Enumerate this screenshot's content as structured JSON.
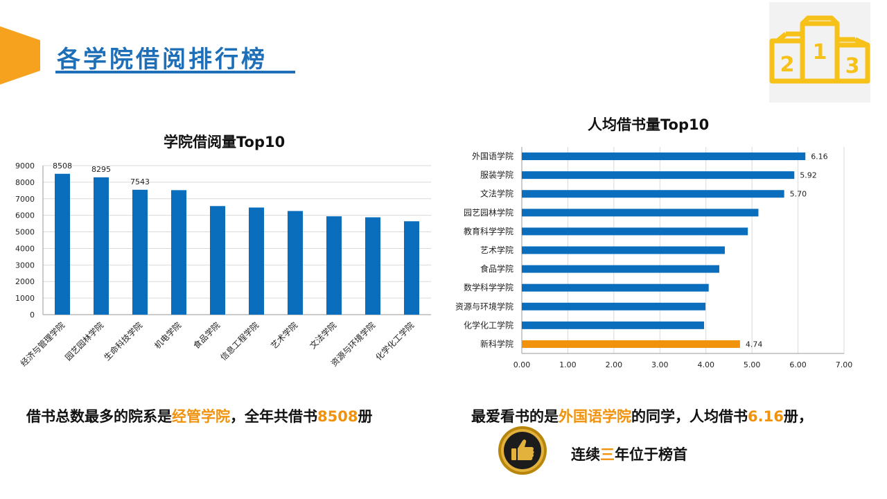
{
  "header": {
    "title": "各学院借阅排行榜",
    "podium_labels": [
      "2",
      "1",
      "3"
    ]
  },
  "colors": {
    "bar_blue": "#0a6ebd",
    "highlight_orange": "#f0920c",
    "title_blue": "#1e6fb8",
    "podium_yellow": "#f6c21a"
  },
  "chart_data": [
    {
      "type": "bar",
      "title": "学院借阅量Top10",
      "categories": [
        "经济与管理学院",
        "园艺园林学院",
        "生命科技学院",
        "机电学院",
        "食品学院",
        "信息工程学院",
        "艺术学院",
        "文法学院",
        "资源与环境学院",
        "化学化工学院"
      ],
      "values": [
        8508,
        8295,
        7543,
        7520,
        6560,
        6470,
        6260,
        5940,
        5880,
        5640
      ],
      "data_labels": [
        "8508",
        "8295",
        "7543",
        null,
        null,
        null,
        null,
        null,
        null,
        null
      ],
      "ylim": [
        0,
        9000
      ],
      "yticks": [
        "0",
        "1000",
        "2000",
        "3000",
        "4000",
        "5000",
        "6000",
        "7000",
        "8000",
        "9000"
      ],
      "grid": true
    },
    {
      "type": "bar",
      "orientation": "horizontal",
      "title": "人均借书量Top10",
      "categories": [
        "外国语学院",
        "服装学院",
        "文法学院",
        "园艺园林学院",
        "教育科学学院",
        "艺术学院",
        "食品学院",
        "数学科学学院",
        "资源与环境学院",
        "化学化工学院",
        "新科学院"
      ],
      "values": [
        6.16,
        5.92,
        5.7,
        5.14,
        4.91,
        4.41,
        4.29,
        4.06,
        3.99,
        3.96,
        4.74
      ],
      "data_labels": [
        "6.16",
        "5.92",
        "5.70",
        null,
        null,
        null,
        null,
        null,
        null,
        null,
        "4.74"
      ],
      "highlight_index": 10,
      "xlim": [
        0,
        7
      ],
      "xticks": [
        "0.00",
        "1.00",
        "2.00",
        "3.00",
        "4.00",
        "5.00",
        "6.00",
        "7.00"
      ],
      "grid": true
    }
  ],
  "captions": {
    "left": {
      "pre": "借书总数最多的院系是",
      "college": "经管学院",
      "mid": "，全年共借书",
      "count": "8508",
      "post": "册"
    },
    "right_line1": {
      "pre": "最爱看书的是",
      "college": "外国语学院",
      "mid": "的同学，人均借书",
      "count": "6.16",
      "post": "册，"
    },
    "right_line2": {
      "pre": "连续",
      "count": "三",
      "post": "年位于榜首"
    }
  }
}
